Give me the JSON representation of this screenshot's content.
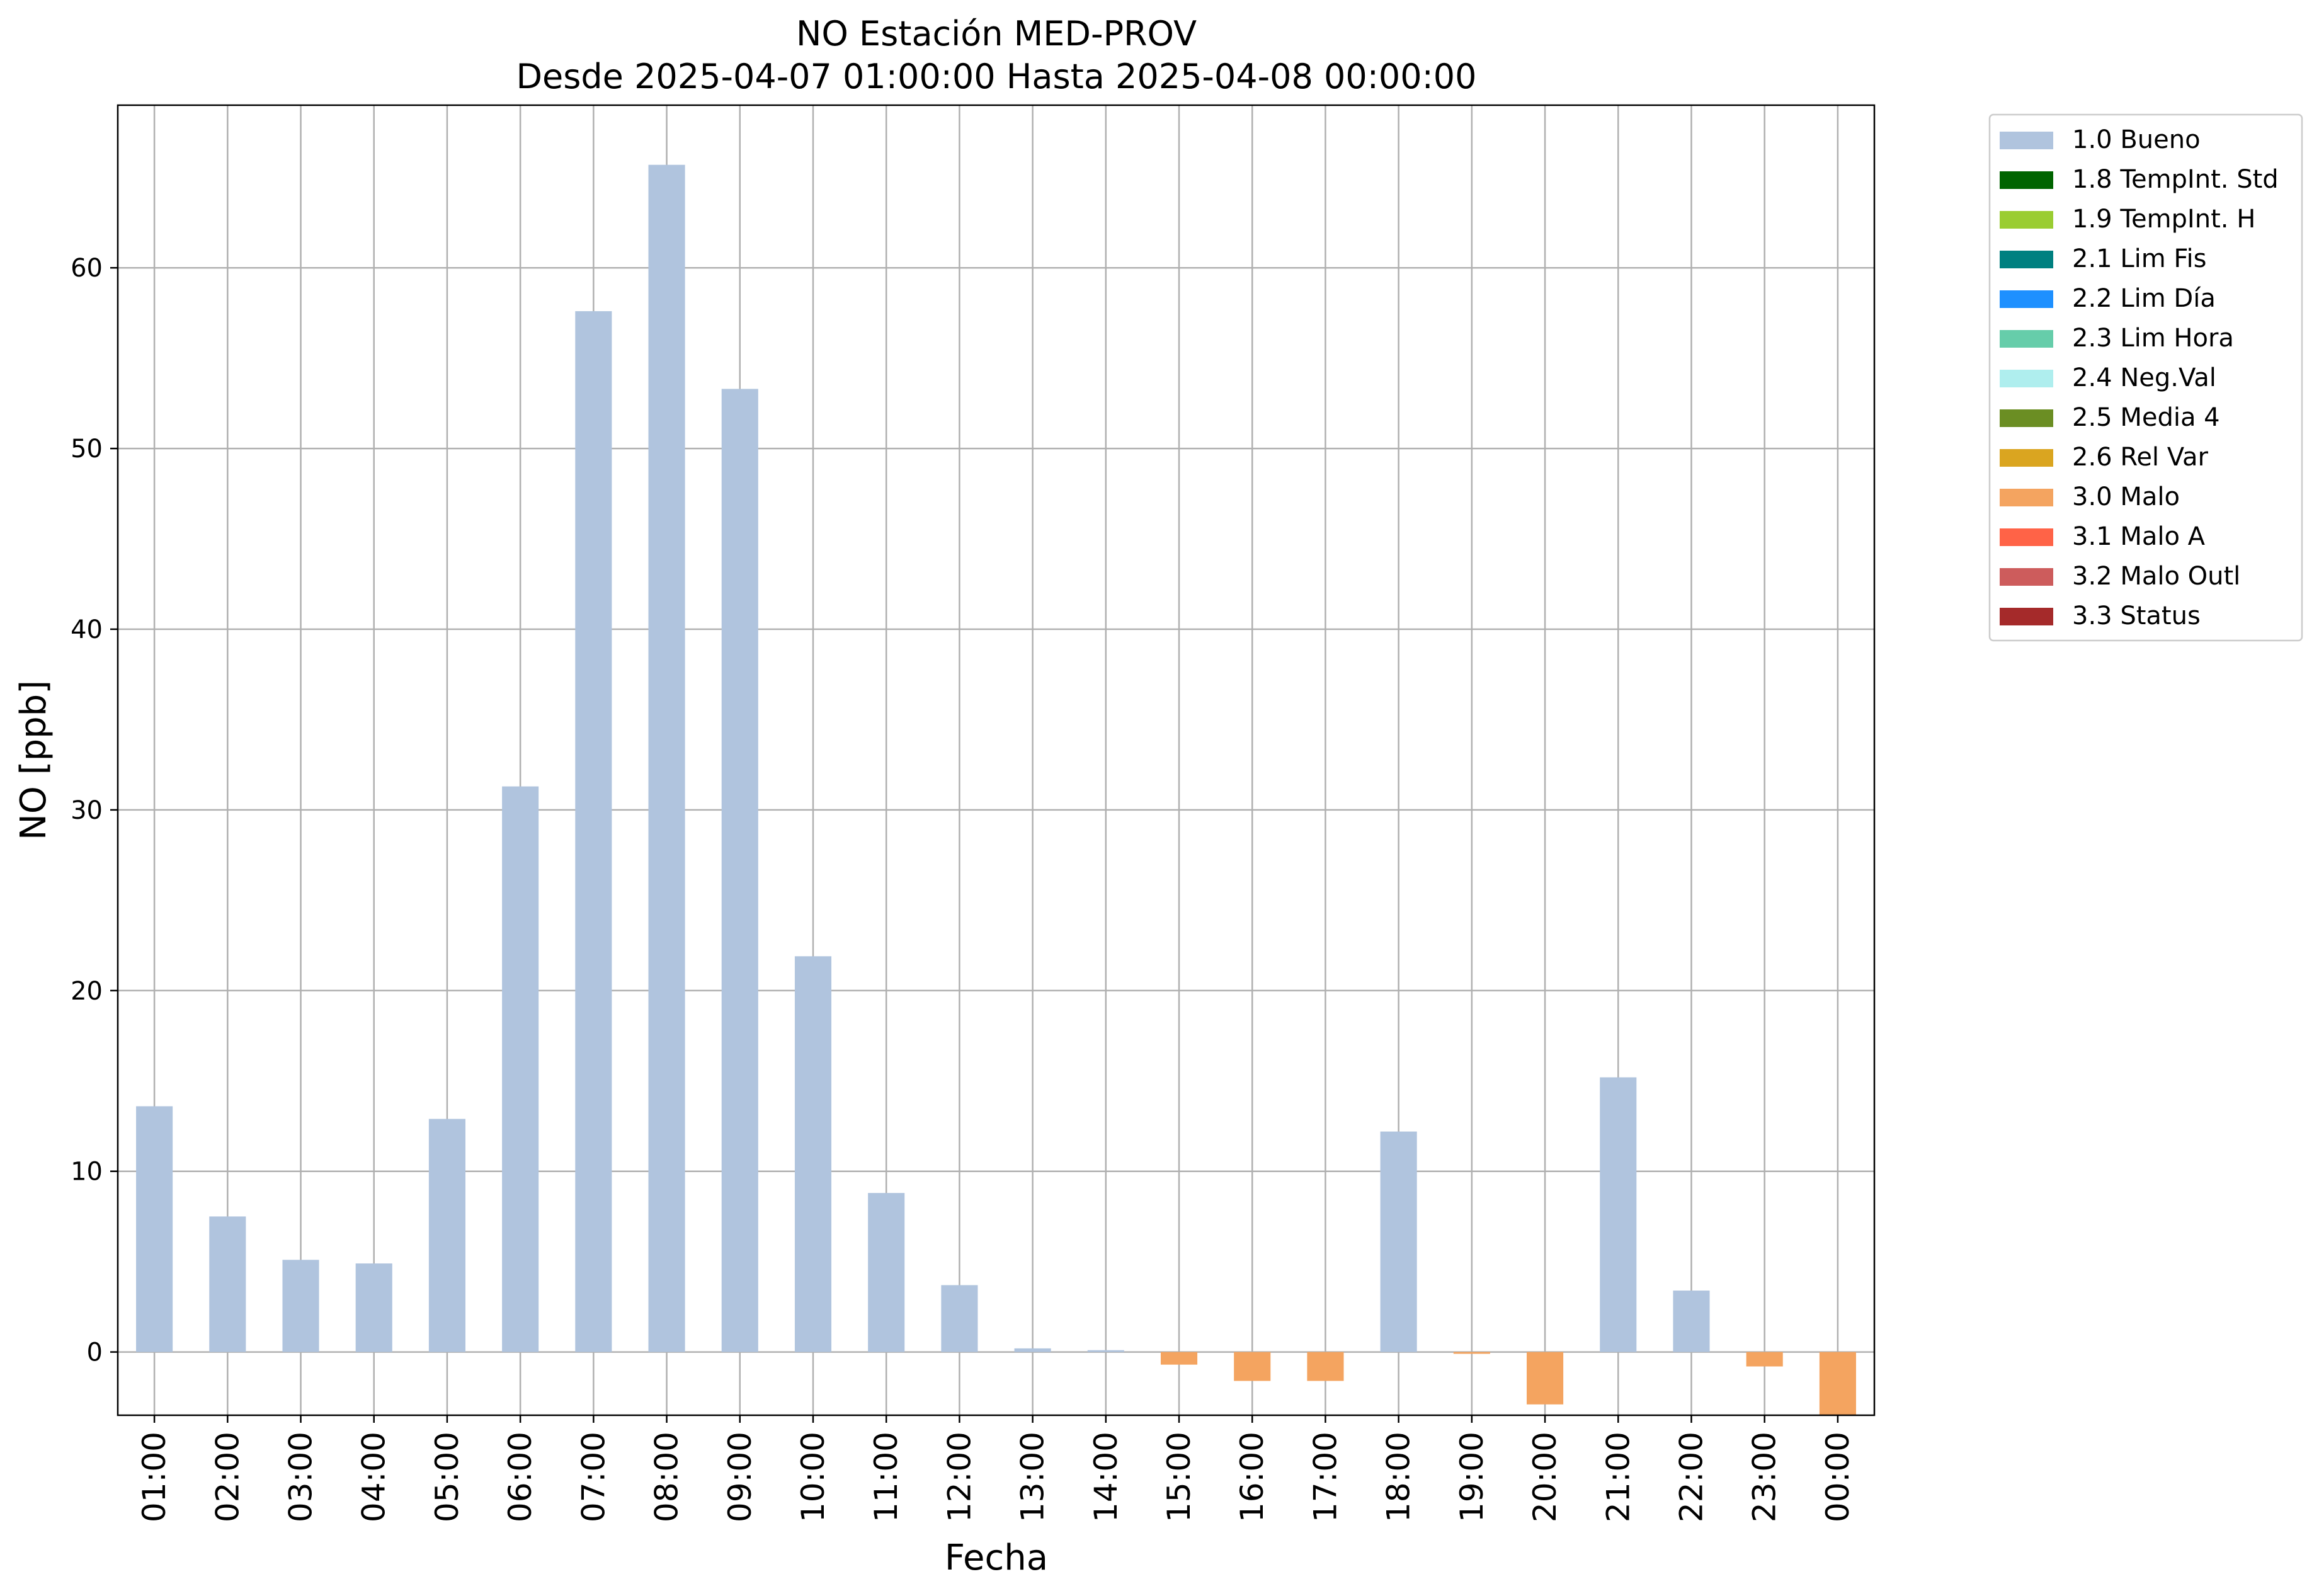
{
  "chart_data": {
    "type": "bar",
    "title": "NO Estación MED-PROV",
    "subtitle": "Desde 2025-04-07 01:00:00 Hasta 2025-04-08 00:00:00",
    "xlabel": "Fecha",
    "ylabel": "NO [ppb]",
    "ylim": [
      -3.5,
      69
    ],
    "yticks": [
      0,
      10,
      20,
      30,
      40,
      50,
      60
    ],
    "grid": true,
    "legend_position": "outside-right",
    "categories": [
      "01:00",
      "02:00",
      "03:00",
      "04:00",
      "05:00",
      "06:00",
      "07:00",
      "08:00",
      "09:00",
      "10:00",
      "11:00",
      "12:00",
      "13:00",
      "14:00",
      "15:00",
      "16:00",
      "17:00",
      "18:00",
      "19:00",
      "20:00",
      "21:00",
      "22:00",
      "23:00",
      "00:00"
    ],
    "values": [
      13.6,
      7.5,
      5.1,
      4.9,
      12.9,
      31.3,
      57.6,
      65.7,
      53.3,
      21.9,
      8.8,
      3.7,
      0.2,
      0.1,
      -0.7,
      -1.6,
      -1.6,
      12.2,
      -0.1,
      -2.9,
      15.2,
      3.4,
      -0.8,
      -3.5
    ],
    "quality": [
      "1.0 Bueno",
      "1.0 Bueno",
      "1.0 Bueno",
      "1.0 Bueno",
      "1.0 Bueno",
      "1.0 Bueno",
      "1.0 Bueno",
      "1.0 Bueno",
      "1.0 Bueno",
      "1.0 Bueno",
      "1.0 Bueno",
      "1.0 Bueno",
      "1.0 Bueno",
      "1.0 Bueno",
      "3.0 Malo",
      "3.0 Malo",
      "3.0 Malo",
      "1.0 Bueno",
      "3.0 Malo",
      "3.0 Malo",
      "1.0 Bueno",
      "1.0 Bueno",
      "3.0 Malo",
      "3.0 Malo"
    ],
    "legend": [
      {
        "label": "1.0 Bueno",
        "color": "#b0c4de"
      },
      {
        "label": "1.8 TempInt. Std",
        "color": "#006400"
      },
      {
        "label": "1.9 TempInt. H",
        "color": "#9acd32"
      },
      {
        "label": "2.1 Lim Fis",
        "color": "#008080"
      },
      {
        "label": "2.2 Lim Día",
        "color": "#1e90ff"
      },
      {
        "label": "2.3 Lim Hora",
        "color": "#66cdaa"
      },
      {
        "label": "2.4 Neg.Val",
        "color": "#afeeee"
      },
      {
        "label": "2.5 Media 4",
        "color": "#6b8e23"
      },
      {
        "label": "2.6 Rel Var",
        "color": "#daa520"
      },
      {
        "label": "3.0 Malo",
        "color": "#f4a460"
      },
      {
        "label": "3.1 Malo A",
        "color": "#ff6347"
      },
      {
        "label": "3.2 Malo Outl",
        "color": "#cd5c5c"
      },
      {
        "label": "3.3 Status",
        "color": "#a52a2a"
      }
    ]
  }
}
